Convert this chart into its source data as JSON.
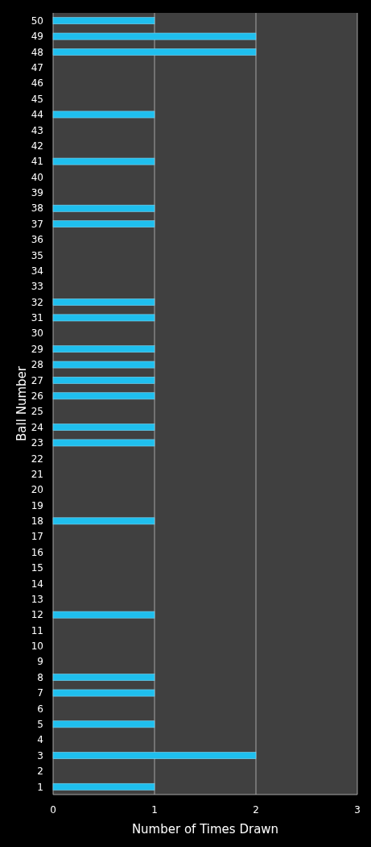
{
  "chart_data": {
    "type": "bar",
    "orientation": "horizontal",
    "xlabel": "Number of Times Drawn",
    "ylabel": "Ball Number",
    "categories": [
      "50",
      "49",
      "48",
      "47",
      "46",
      "45",
      "44",
      "43",
      "42",
      "41",
      "40",
      "39",
      "38",
      "37",
      "36",
      "35",
      "34",
      "33",
      "32",
      "31",
      "30",
      "29",
      "28",
      "27",
      "26",
      "25",
      "24",
      "23",
      "22",
      "21",
      "20",
      "19",
      "18",
      "17",
      "16",
      "15",
      "14",
      "13",
      "12",
      "11",
      "10",
      "9",
      "8",
      "7",
      "6",
      "5",
      "4",
      "3",
      "2",
      "1"
    ],
    "values": [
      1,
      2,
      2,
      0,
      0,
      0,
      1,
      0,
      0,
      1,
      0,
      0,
      1,
      1,
      0,
      0,
      0,
      0,
      1,
      1,
      0,
      1,
      1,
      1,
      1,
      0,
      1,
      1,
      0,
      0,
      0,
      0,
      1,
      0,
      0,
      0,
      0,
      0,
      1,
      0,
      0,
      0,
      1,
      1,
      0,
      1,
      0,
      2,
      0,
      1
    ],
    "color": "#1fbfee",
    "xlim": [
      0,
      3
    ],
    "xticks": [
      0,
      1,
      2,
      3
    ],
    "grid": "x"
  }
}
